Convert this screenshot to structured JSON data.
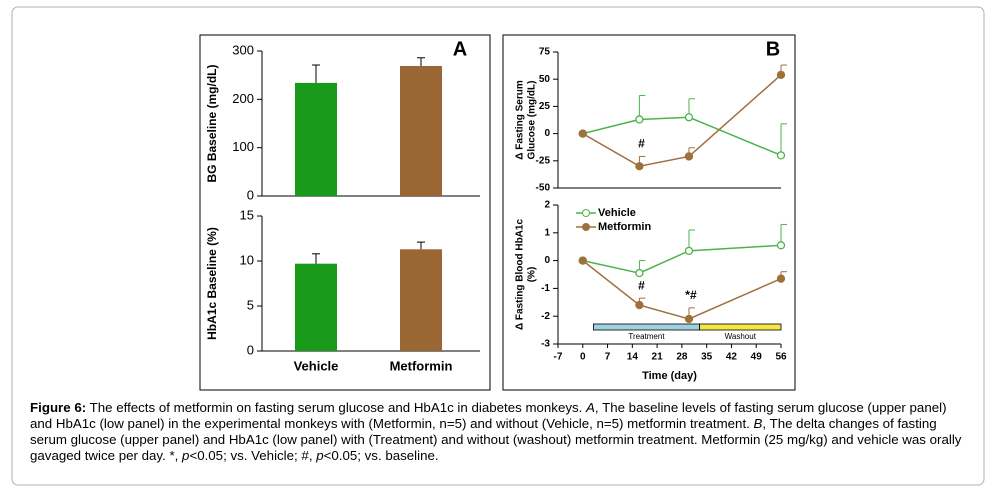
{
  "chart_data": [
    {
      "type": "bar",
      "panel": "A",
      "ylabel": "BG Baseline (mg/dL)",
      "values": [
        234,
        269
      ],
      "errors": [
        37,
        17
      ],
      "colors": [
        "#1a9a1a",
        "#9a6634"
      ],
      "ylim": [
        0,
        300
      ],
      "yticks": [
        0,
        100,
        200,
        300
      ]
    },
    {
      "type": "bar",
      "ylabel": "HbA1c Baseline (%)",
      "categories": [
        "Vehicle",
        "Metformin"
      ],
      "values": [
        9.7,
        11.3
      ],
      "errors": [
        1.1,
        0.8
      ],
      "colors": [
        "#1a9a1a",
        "#9a6634"
      ],
      "ylim": [
        0,
        15
      ],
      "yticks": [
        0,
        5,
        10,
        15
      ]
    },
    {
      "type": "line",
      "panel": "B",
      "ylabel": [
        "Δ Fasting Serum",
        "Glucose (mg/dL)"
      ],
      "x": [
        0,
        16,
        30,
        56
      ],
      "xlim": [
        -7,
        56
      ],
      "ylim": [
        -50,
        75
      ],
      "yticks": [
        -50,
        -25,
        0,
        25,
        50,
        75
      ],
      "series": [
        {
          "color": "#4cb34c",
          "marker": "open",
          "values": [
            0,
            13,
            15,
            -20
          ],
          "errors": [
            null,
            22,
            17,
            29
          ],
          "error_direction": [
            null,
            "up",
            "up",
            "up"
          ]
        },
        {
          "color": "#a0703c",
          "marker": "filled",
          "values": [
            0,
            -30,
            -21,
            54
          ],
          "errors": [
            null,
            9,
            8,
            9
          ],
          "error_direction": [
            null,
            "up",
            "up",
            "up"
          ]
        }
      ],
      "annotations": [
        {
          "text": "#",
          "x": 16
        }
      ]
    },
    {
      "type": "line",
      "ylabel": [
        "Δ Fasting Blood HbA1c",
        "(%)"
      ],
      "xlabel": "Time (day)",
      "x": [
        0,
        16,
        30,
        56
      ],
      "xlim": [
        -7,
        56
      ],
      "xticks": [
        -7,
        0,
        7,
        14,
        21,
        28,
        35,
        42,
        49,
        56
      ],
      "ylim": [
        -3,
        2
      ],
      "yticks": [
        -3,
        -2,
        -1,
        0,
        1,
        2
      ],
      "legend": "upper left",
      "series": [
        {
          "name": "Vehicle",
          "color": "#4cb34c",
          "marker": "open",
          "values": [
            0,
            -0.45,
            0.35,
            0.55
          ],
          "errors": [
            null,
            0.45,
            0.75,
            0.75
          ],
          "error_direction": [
            null,
            "up",
            "up",
            "up"
          ]
        },
        {
          "name": "Metformin",
          "color": "#a0703c",
          "marker": "filled",
          "values": [
            0,
            -1.6,
            -2.1,
            -0.65
          ],
          "errors": [
            null,
            0.25,
            0.4,
            0.25
          ],
          "error_direction": [
            null,
            "up",
            "up",
            "up"
          ]
        }
      ],
      "annotations": [
        {
          "text": "#",
          "x": 16
        },
        {
          "text": "*#",
          "x": 30
        }
      ],
      "phases": [
        {
          "label": "Treatment",
          "start": 3,
          "end": 33,
          "color": "#9fd0e0"
        },
        {
          "label": "Washout",
          "start": 33,
          "end": 56,
          "color": "#f5e642"
        }
      ]
    }
  ],
  "caption": [
    {
      "text": "Figure 6:",
      "style": "bold"
    },
    {
      "text": " The effects of metformin on fasting serum glucose and HbA1c in diabetes monkeys. ",
      "style": "normal"
    },
    {
      "text": "A",
      "style": "italic"
    },
    {
      "text": ", The baseline levels of fasting serum glucose (upper panel) and HbA1c (low panel) in the experimental monkeys with (Metformin, n=5) and without (Vehicle, n=5) metformin treatment. ",
      "style": "normal"
    },
    {
      "text": "B",
      "style": "italic"
    },
    {
      "text": ", The delta changes of fasting serum glucose (upper panel) and HbA1c (low panel) with (Treatment) and without (washout) metformin treatment. Metformin (25 mg/kg) and vehicle was orally gavaged twice per day. *, ",
      "style": "normal"
    },
    {
      "text": "p",
      "style": "italic"
    },
    {
      "text": "<0.05; vs. Vehicle; #, ",
      "style": "normal"
    },
    {
      "text": "p",
      "style": "italic"
    },
    {
      "text": "<0.05; vs. baseline.",
      "style": "normal"
    }
  ]
}
